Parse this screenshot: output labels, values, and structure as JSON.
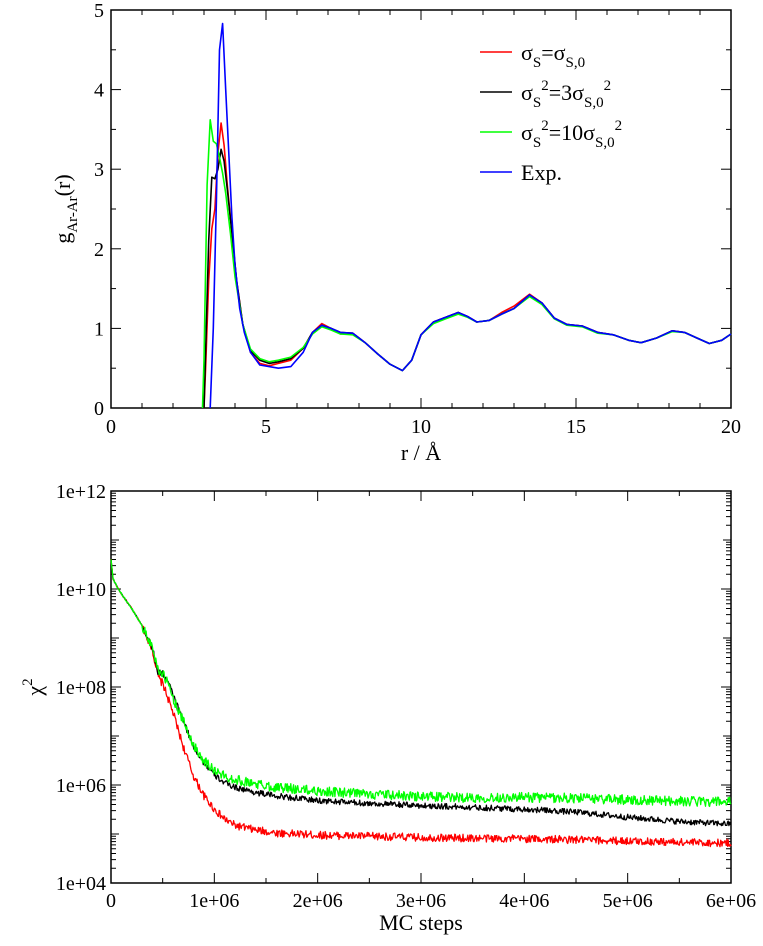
{
  "chart_data": [
    {
      "type": "line",
      "title": "",
      "xlabel": "r / Å",
      "ylabel": "g(r)",
      "ylabel_main": "g",
      "ylabel_sub": "Ar-Ar",
      "ylabel_tail": "(r)",
      "xlim": [
        0,
        20
      ],
      "ylim": [
        0,
        5
      ],
      "xticks": [
        0,
        5,
        10,
        15,
        20
      ],
      "yticks": [
        0,
        1,
        2,
        3,
        4,
        5
      ],
      "xtick_labels": [
        "0",
        "5",
        "10",
        "15",
        "20"
      ],
      "ytick_labels": [
        "0",
        "1",
        "2",
        "3",
        "4",
        "5"
      ],
      "legend_position": "top-right",
      "legend": [
        {
          "parts": [
            "σ",
            "S",
            "=σ",
            "S,0",
            ""
          ],
          "kinds": [
            "t",
            "sub",
            "t",
            "sub",
            "t"
          ]
        },
        {
          "parts": [
            "σ",
            "S",
            "2",
            "=3σ",
            "S,0",
            "2"
          ],
          "kinds": [
            "t",
            "sub",
            "sup",
            "t",
            "sub",
            "sup"
          ]
        },
        {
          "parts": [
            "σ",
            "S",
            "2",
            "=10σ",
            "S,0",
            "2"
          ],
          "kinds": [
            "t",
            "sub",
            "sup",
            "t",
            "sub",
            "sup"
          ]
        },
        {
          "parts": [
            "Exp."
          ],
          "kinds": [
            "t"
          ]
        }
      ],
      "series": [
        {
          "name": "σS=σS,0",
          "color": "#ff0000",
          "x": [
            3.0,
            3.05,
            3.15,
            3.25,
            3.35,
            3.45,
            3.55,
            3.65,
            3.75,
            3.9,
            4.05,
            4.25,
            4.5,
            4.8,
            5.1,
            5.4,
            5.8,
            6.2,
            6.5,
            6.8,
            7.1,
            7.4,
            7.8,
            8.2,
            8.6,
            9.0,
            9.4,
            9.7,
            10.0,
            10.4,
            10.8,
            11.2,
            11.5,
            11.8,
            12.2,
            12.6,
            13.0,
            13.5,
            13.9,
            14.3,
            14.7,
            15.2,
            15.7,
            16.2,
            16.7,
            17.1,
            17.6,
            18.1,
            18.5,
            18.9,
            19.3,
            19.7,
            20.0
          ],
          "y": [
            0.0,
            0.5,
            1.6,
            2.25,
            2.5,
            3.2,
            3.58,
            3.3,
            2.8,
            2.2,
            1.6,
            1.05,
            0.7,
            0.56,
            0.53,
            0.56,
            0.6,
            0.75,
            0.95,
            1.06,
            1.0,
            0.93,
            0.94,
            0.82,
            0.68,
            0.55,
            0.47,
            0.6,
            0.92,
            1.08,
            1.14,
            1.2,
            1.15,
            1.08,
            1.1,
            1.2,
            1.28,
            1.43,
            1.32,
            1.13,
            1.05,
            1.03,
            0.95,
            0.92,
            0.85,
            0.82,
            0.88,
            0.97,
            0.95,
            0.88,
            0.81,
            0.85,
            0.93
          ]
        },
        {
          "name": "σS²=3σS,0²",
          "color": "#000000",
          "x": [
            3.0,
            3.05,
            3.15,
            3.25,
            3.35,
            3.45,
            3.55,
            3.65,
            3.75,
            3.9,
            4.05,
            4.25,
            4.5,
            4.8,
            5.1,
            5.4,
            5.8,
            6.2,
            6.5,
            6.8,
            7.1,
            7.4,
            7.8,
            8.2,
            8.6,
            9.0,
            9.4,
            9.7,
            10.0,
            10.4,
            10.8,
            11.2,
            11.5,
            11.8,
            12.2,
            12.6,
            13.0,
            13.5,
            13.9,
            14.3,
            14.7,
            15.2,
            15.7,
            16.2,
            16.7,
            17.1,
            17.6,
            18.1,
            18.5,
            18.9,
            19.3,
            19.7,
            20.0
          ],
          "y": [
            0.0,
            0.7,
            2.1,
            2.9,
            2.88,
            3.0,
            3.25,
            3.1,
            2.75,
            2.2,
            1.6,
            1.05,
            0.72,
            0.6,
            0.56,
            0.58,
            0.62,
            0.75,
            0.95,
            1.04,
            1.0,
            0.95,
            0.94,
            0.82,
            0.68,
            0.55,
            0.47,
            0.6,
            0.92,
            1.08,
            1.14,
            1.2,
            1.15,
            1.08,
            1.1,
            1.18,
            1.25,
            1.42,
            1.32,
            1.13,
            1.05,
            1.03,
            0.95,
            0.92,
            0.85,
            0.82,
            0.88,
            0.97,
            0.95,
            0.88,
            0.81,
            0.85,
            0.93
          ]
        },
        {
          "name": "σS²=10σS,0²",
          "color": "#00ff00",
          "x": [
            2.95,
            3.0,
            3.1,
            3.2,
            3.3,
            3.4,
            3.5,
            3.6,
            3.7,
            3.85,
            4.0,
            4.25,
            4.5,
            4.8,
            5.1,
            5.4,
            5.8,
            6.2,
            6.5,
            6.8,
            7.1,
            7.4,
            7.8,
            8.2,
            8.6,
            9.0,
            9.4,
            9.7,
            10.0,
            10.4,
            10.8,
            11.2,
            11.5,
            11.8,
            12.2,
            12.6,
            13.0,
            13.5,
            13.9,
            14.3,
            14.7,
            15.2,
            15.7,
            16.2,
            16.7,
            17.1,
            17.6,
            18.1,
            18.5,
            18.9,
            19.3,
            19.7,
            20.0
          ],
          "y": [
            0.0,
            0.6,
            2.8,
            3.62,
            3.35,
            3.32,
            3.15,
            2.95,
            2.7,
            2.2,
            1.65,
            1.05,
            0.74,
            0.62,
            0.58,
            0.6,
            0.64,
            0.76,
            0.93,
            1.02,
            0.98,
            0.93,
            0.92,
            0.82,
            0.68,
            0.55,
            0.47,
            0.6,
            0.92,
            1.06,
            1.12,
            1.18,
            1.14,
            1.08,
            1.1,
            1.18,
            1.25,
            1.4,
            1.3,
            1.12,
            1.04,
            1.02,
            0.94,
            0.92,
            0.85,
            0.82,
            0.88,
            0.96,
            0.95,
            0.88,
            0.81,
            0.85,
            0.93
          ]
        },
        {
          "name": "Exp.",
          "color": "#0000ff",
          "x": [
            3.2,
            3.3,
            3.4,
            3.5,
            3.6,
            3.7,
            3.8,
            3.9,
            4.0,
            4.15,
            4.3,
            4.5,
            4.8,
            5.1,
            5.4,
            5.8,
            6.2,
            6.5,
            6.8,
            7.1,
            7.4,
            7.8,
            8.2,
            8.6,
            9.0,
            9.4,
            9.7,
            10.0,
            10.4,
            10.8,
            11.2,
            11.5,
            11.8,
            12.2,
            12.6,
            13.0,
            13.5,
            13.9,
            14.3,
            14.7,
            15.2,
            15.7,
            16.2,
            16.7,
            17.1,
            17.6,
            18.1,
            18.5,
            18.9,
            19.3,
            19.7,
            20.0
          ],
          "y": [
            0.0,
            1.0,
            2.6,
            4.5,
            4.83,
            4.0,
            3.2,
            2.4,
            1.8,
            1.25,
            0.95,
            0.7,
            0.54,
            0.52,
            0.5,
            0.52,
            0.7,
            0.95,
            1.04,
            1.0,
            0.95,
            0.94,
            0.82,
            0.68,
            0.55,
            0.47,
            0.6,
            0.92,
            1.08,
            1.14,
            1.2,
            1.15,
            1.08,
            1.1,
            1.18,
            1.25,
            1.42,
            1.32,
            1.13,
            1.05,
            1.03,
            0.95,
            0.92,
            0.85,
            0.82,
            0.88,
            0.97,
            0.95,
            0.88,
            0.81,
            0.85,
            0.93
          ]
        }
      ]
    },
    {
      "type": "line",
      "title": "",
      "xlabel": "MC steps",
      "ylabel": "χ²",
      "ylabel_main": "χ",
      "ylabel_sup": "2",
      "yscale": "log",
      "xlim": [
        0,
        6000000
      ],
      "ylim": [
        10000,
        1000000000000
      ],
      "xticks": [
        0,
        1000000,
        2000000,
        3000000,
        4000000,
        5000000,
        6000000
      ],
      "yticks": [
        10000,
        1000000,
        100000000,
        10000000000,
        1000000000000
      ],
      "xtick_labels": [
        "0",
        "1e+06",
        "2e+06",
        "3e+06",
        "4e+06",
        "5e+06",
        "6e+06"
      ],
      "ytick_labels": [
        "1e+04",
        "1e+06",
        "1e+08",
        "1e+10",
        "1e+12"
      ],
      "series": [
        {
          "name": "σS=σS,0",
          "color": "#ff0000",
          "x": [
            0,
            20000,
            60000,
            100000,
            200000,
            300000,
            400000,
            450000,
            480000,
            500000,
            600000,
            700000,
            800000,
            900000,
            1000000,
            1100000,
            1200000,
            1400000,
            1600000,
            1800000,
            2000000,
            2500000,
            3000000,
            3500000,
            4000000,
            4500000,
            5000000,
            5500000,
            6000000
          ],
          "y": [
            40000000000.0,
            16000000000.0,
            11000000000.0,
            8000000000.0,
            4000000000.0,
            1800000000.0,
            600000000.0,
            180000000.0,
            130000000.0,
            120000000.0,
            30000000.0,
            6000000.0,
            1500000.0,
            600000.0,
            320000.0,
            200000.0,
            150000.0,
            120000.0,
            105000.0,
            100000.0,
            95000.0,
            90000.0,
            85000.0,
            82000.0,
            80000.0,
            76000.0,
            72000.0,
            68000.0,
            65000.0
          ],
          "noise": 0.08
        },
        {
          "name": "σS²=3σS,0²",
          "color": "#000000",
          "x": [
            0,
            20000,
            60000,
            100000,
            200000,
            300000,
            400000,
            450000,
            500000,
            550000,
            600000,
            700000,
            800000,
            900000,
            1000000,
            1100000,
            1200000,
            1400000,
            1600000,
            2000000,
            2500000,
            3000000,
            3500000,
            4000000,
            4500000,
            5000000,
            5500000,
            6000000
          ],
          "y": [
            40000000000.0,
            16000000000.0,
            11000000000.0,
            8000000000.0,
            4000000000.0,
            1800000000.0,
            650000000.0,
            200000000.0,
            190000000.0,
            130000000.0,
            70000000.0,
            20000000.0,
            6000000.0,
            2800000.0,
            1600000.0,
            1100000.0,
            900000.0,
            700000.0,
            600000.0,
            480000.0,
            420000.0,
            380000.0,
            350000.0,
            320000.0,
            280000.0,
            220000.0,
            180000.0,
            160000.0
          ],
          "noise": 0.06
        },
        {
          "name": "σS²=10σS,0²",
          "color": "#00ff00",
          "x": [
            0,
            20000,
            60000,
            100000,
            200000,
            300000,
            400000,
            450000,
            500000,
            550000,
            600000,
            700000,
            800000,
            900000,
            1000000,
            1100000,
            1200000,
            1400000,
            1600000,
            2000000,
            2500000,
            3000000,
            3500000,
            4000000,
            4500000,
            5000000,
            5500000,
            6000000
          ],
          "y": [
            40000000000.0,
            16000000000.0,
            11000000000.0,
            8000000000.0,
            4000000000.0,
            1800000000.0,
            650000000.0,
            250000000.0,
            180000000.0,
            120000000.0,
            60000000.0,
            20000000.0,
            6500000.0,
            3200000.0,
            2000000.0,
            1500000.0,
            1300000.0,
            1050000.0,
            900000.0,
            750000.0,
            650000.0,
            580000.0,
            550000.0,
            560000.0,
            540000.0,
            500000.0,
            470000.0,
            450000.0
          ],
          "noise": 0.1
        }
      ]
    }
  ]
}
